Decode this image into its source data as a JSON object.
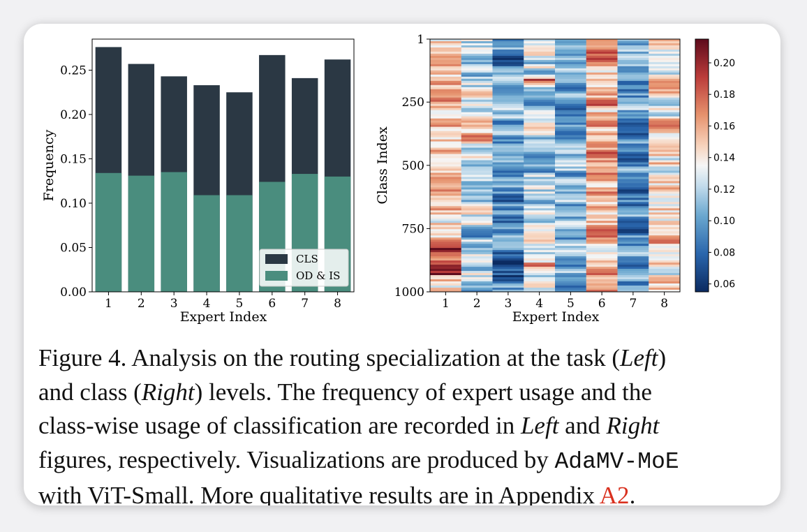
{
  "colors": {
    "cls": "#2b3844",
    "od_is": "#4a8d7e",
    "ref": "#d9311f"
  },
  "chart_data": [
    {
      "type": "bar",
      "stacked": false,
      "categories": [
        "1",
        "2",
        "3",
        "4",
        "5",
        "6",
        "7",
        "8"
      ],
      "series": [
        {
          "name": "CLS",
          "values": [
            0.276,
            0.257,
            0.243,
            0.233,
            0.225,
            0.267,
            0.241,
            0.262
          ]
        },
        {
          "name": "OD & IS",
          "values": [
            0.134,
            0.131,
            0.135,
            0.109,
            0.109,
            0.124,
            0.133,
            0.13
          ]
        }
      ],
      "xlabel": "Expert Index",
      "ylabel": "Frequency",
      "ylim": [
        0,
        0.285
      ],
      "yticks": [
        "0.00",
        "0.05",
        "0.10",
        "0.15",
        "0.20",
        "0.25"
      ],
      "ytick_values": [
        0,
        0.05,
        0.1,
        0.15,
        0.2,
        0.25
      ],
      "legend": "lower-right",
      "grid": false
    },
    {
      "type": "heatmap",
      "x_categories": [
        "1",
        "2",
        "3",
        "4",
        "5",
        "6",
        "7",
        "8"
      ],
      "xlabel": "Expert Index",
      "ylabel": "Class Index",
      "yticks": [
        "1",
        "250",
        "500",
        "750",
        "1000"
      ],
      "ytick_values": [
        1,
        250,
        500,
        750,
        1000
      ],
      "y_range": [
        1,
        1000
      ],
      "colormap": "RdBu_r",
      "colorbar_range": [
        0.055,
        0.215
      ],
      "colorbar_ticks": [
        "0.06",
        "0.08",
        "0.10",
        "0.12",
        "0.14",
        "0.16",
        "0.18",
        "0.20"
      ],
      "colorbar_tick_values": [
        0.06,
        0.08,
        0.1,
        0.12,
        0.14,
        0.16,
        0.18,
        0.2
      ],
      "column_mean_values": [
        0.15,
        0.12,
        0.095,
        0.12,
        0.105,
        0.16,
        0.095,
        0.145
      ]
    }
  ],
  "caption": {
    "line1_a": "Figure 4. Analysis on the routing specialization at the task (",
    "left1": "Left",
    "line1_b": ")",
    "line2_a": "and class (",
    "right1": "Right",
    "line2_b": ") levels.  The frequency of expert usage and the",
    "line3_a": "class-wise usage of classification are recorded in ",
    "left2": "Left",
    "line3_b": " and ",
    "right2": "Right",
    "line4_a": "figures, respectively. Visualizations are produced by ",
    "model": "AdaMV-MoE",
    "line5_a": "with ViT-Small. More qualitative results are in Appendix ",
    "appendix": "A2",
    "line5_b": "."
  }
}
